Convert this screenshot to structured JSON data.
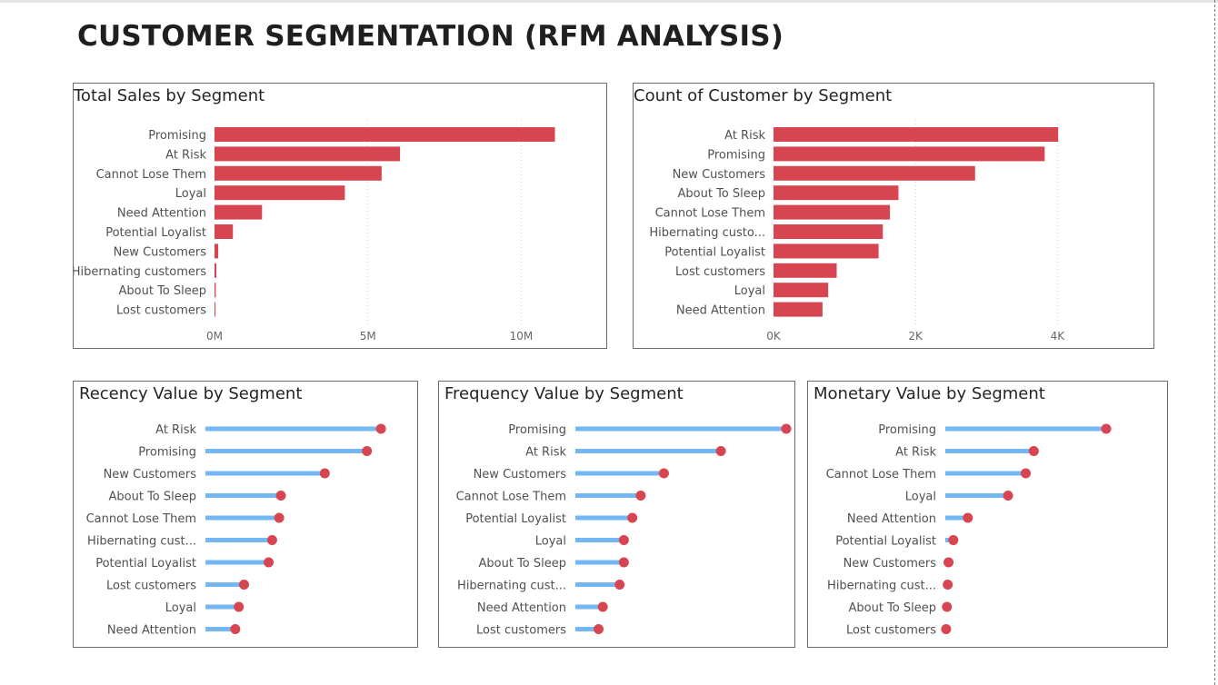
{
  "page": {
    "title": "CUSTOMER SEGMENTATION (RFM ANALYSIS)"
  },
  "colors": {
    "bar": "#d64550",
    "lollipop_line": "#73b8f5",
    "lollipop_dot": "#d64550",
    "gridline": "#d0d0d0"
  },
  "chart_data": [
    {
      "id": "total-sales",
      "type": "bar",
      "title": "Total Sales by Segment",
      "categories": [
        "Promising",
        "At Risk",
        "Cannot Lose Them",
        "Loyal",
        "Need Attention",
        "Potential Loyalist",
        "New Customers",
        "Hibernating customers",
        "About To Sleep",
        "Lost customers"
      ],
      "values": [
        11100000,
        6050000,
        5450000,
        4250000,
        1550000,
        600000,
        120000,
        60000,
        40000,
        30000
      ],
      "xlim": [
        0,
        11500000
      ],
      "xticks": [
        0,
        5000000,
        10000000
      ],
      "xtick_labels": [
        "0M",
        "5M",
        "10M"
      ],
      "grid": true
    },
    {
      "id": "customer-count",
      "type": "bar",
      "title": "Count of Customer by Segment",
      "categories": [
        "At Risk",
        "Promising",
        "New Customers",
        "About To Sleep",
        "Cannot Lose Them",
        "Hibernating custo...",
        "Potential Loyalist",
        "Lost customers",
        "Loyal",
        "Need Attention"
      ],
      "values": [
        4010,
        3820,
        2840,
        1760,
        1640,
        1540,
        1480,
        890,
        770,
        690
      ],
      "xlim": [
        0,
        4200
      ],
      "xticks": [
        0,
        2000,
        4000
      ],
      "xtick_labels": [
        "0K",
        "2K",
        "4K"
      ],
      "grid": true
    },
    {
      "id": "recency",
      "type": "lollipop",
      "title": "Recency Value by Segment",
      "categories": [
        "At Risk",
        "Promising",
        "New Customers",
        "About To Sleep",
        "Cannot Lose Them",
        "Hibernating cust...",
        "Potential Loyalist",
        "Lost customers",
        "Loyal",
        "Need Attention"
      ],
      "values": [
        100,
        92,
        68,
        43,
        42,
        38,
        36,
        22,
        19,
        17
      ],
      "xlim": [
        0,
        102
      ]
    },
    {
      "id": "frequency",
      "type": "lollipop",
      "title": "Frequency Value by Segment",
      "categories": [
        "Promising",
        "At Risk",
        "New Customers",
        "Cannot Lose Them",
        "Potential Loyalist",
        "Loyal",
        "About To Sleep",
        "Hibernating cust...",
        "Need Attention",
        "Lost customers"
      ],
      "values": [
        100,
        69,
        42,
        31,
        27,
        23,
        23,
        21,
        13,
        11
      ],
      "xlim": [
        0,
        100
      ]
    },
    {
      "id": "monetary",
      "type": "lollipop",
      "title": "Monetary Value by Segment",
      "categories": [
        "Promising",
        "At Risk",
        "Cannot Lose Them",
        "Loyal",
        "Need Attention",
        "Potential Loyalist",
        "New Customers",
        "Hibernating cust...",
        "About To Sleep",
        "Lost customers"
      ],
      "values": [
        100,
        55,
        50,
        39,
        14,
        5,
        2,
        1.5,
        1,
        0.5
      ],
      "xlim": [
        0,
        100
      ]
    }
  ]
}
